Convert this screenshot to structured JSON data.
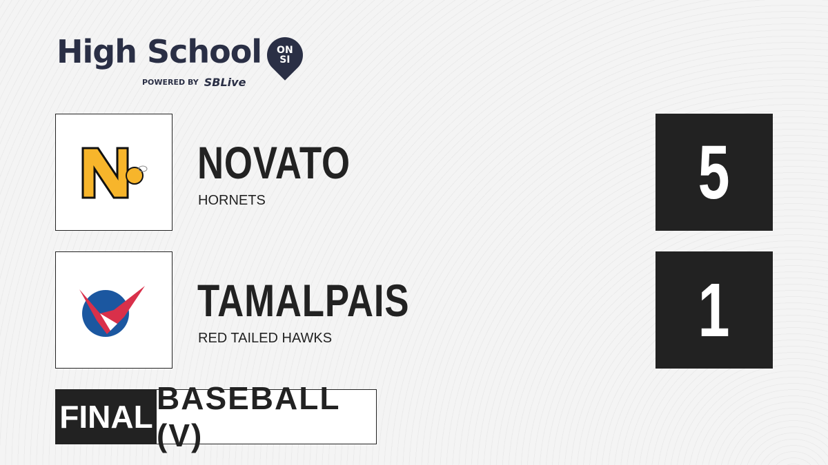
{
  "brand": {
    "title": "High School",
    "pin_text_1": "ON",
    "pin_text_2": "SI",
    "powered_by": "POWERED BY",
    "sblive": "SBLive"
  },
  "teams": [
    {
      "name": "NOVATO",
      "mascot": "HORNETS",
      "score": "5",
      "logo_color": "#f7b52b"
    },
    {
      "name": "TAMALPAIS",
      "mascot": "RED TAILED HAWKS",
      "score": "1",
      "logo_color": "#1b57a0"
    }
  ],
  "status": "FINAL",
  "sport": "BASEBALL (V)"
}
